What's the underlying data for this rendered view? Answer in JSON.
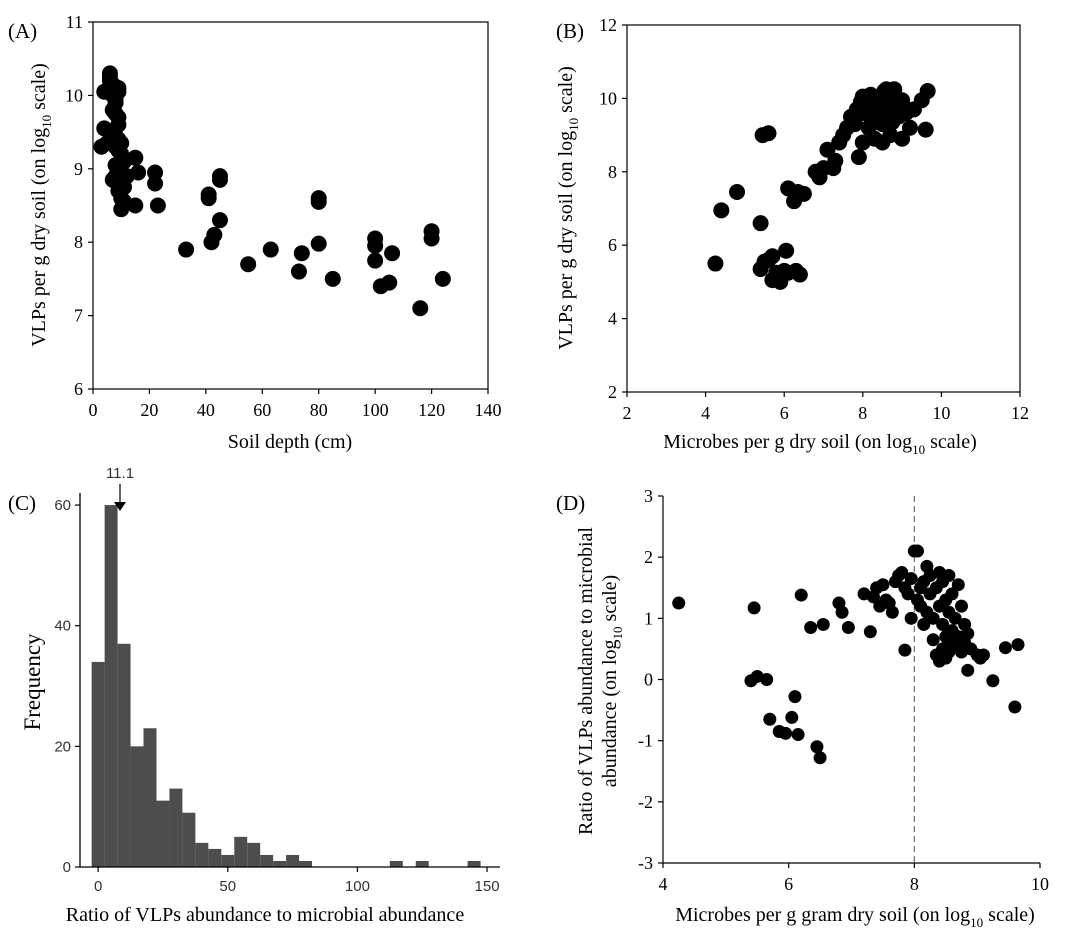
{
  "chart_data": [
    {
      "panel": "(A)",
      "type": "scatter",
      "title": "",
      "xlabel": "Soil depth (cm)",
      "ylabel_parts": [
        "VLPs per g dry soil (on log",
        "10",
        " scale)"
      ],
      "xlim": [
        0,
        140
      ],
      "ylim": [
        6,
        11
      ],
      "xticks": [
        0,
        20,
        40,
        60,
        80,
        100,
        120,
        140
      ],
      "yticks": [
        6,
        7,
        8,
        9,
        10,
        11
      ],
      "grid": false,
      "color": "#000000",
      "points": [
        [
          3,
          9.3
        ],
        [
          4,
          9.55
        ],
        [
          5,
          9.35
        ],
        [
          4,
          10.05
        ],
        [
          6,
          10.3
        ],
        [
          6,
          10.25
        ],
        [
          6,
          10.2
        ],
        [
          7,
          10.15
        ],
        [
          7,
          10.1
        ],
        [
          7,
          10.0
        ],
        [
          8,
          9.95
        ],
        [
          8,
          9.9
        ],
        [
          9,
          10.1
        ],
        [
          9,
          10.05
        ],
        [
          7,
          9.8
        ],
        [
          8,
          9.75
        ],
        [
          9,
          9.7
        ],
        [
          9,
          9.6
        ],
        [
          7,
          9.5
        ],
        [
          8,
          9.45
        ],
        [
          9,
          9.4
        ],
        [
          10,
          9.35
        ],
        [
          8,
          9.3
        ],
        [
          9,
          9.25
        ],
        [
          10,
          9.2
        ],
        [
          10,
          9.1
        ],
        [
          8,
          9.05
        ],
        [
          9,
          9.0
        ],
        [
          10,
          8.95
        ],
        [
          11,
          9.1
        ],
        [
          8,
          8.9
        ],
        [
          9,
          8.85
        ],
        [
          7,
          8.85
        ],
        [
          10,
          8.8
        ],
        [
          11,
          8.75
        ],
        [
          9,
          8.7
        ],
        [
          10,
          8.6
        ],
        [
          11,
          8.55
        ],
        [
          10,
          8.45
        ],
        [
          12,
          8.9
        ],
        [
          15,
          9.15
        ],
        [
          16,
          8.95
        ],
        [
          15,
          8.5
        ],
        [
          22,
          8.95
        ],
        [
          22,
          8.8
        ],
        [
          23,
          8.5
        ],
        [
          33,
          7.9
        ],
        [
          41,
          8.65
        ],
        [
          41,
          8.6
        ],
        [
          42,
          8.0
        ],
        [
          43,
          8.1
        ],
        [
          45,
          8.9
        ],
        [
          45,
          8.85
        ],
        [
          45,
          8.3
        ],
        [
          55,
          7.7
        ],
        [
          63,
          7.9
        ],
        [
          73,
          7.6
        ],
        [
          74,
          7.85
        ],
        [
          80,
          7.98
        ],
        [
          80,
          8.6
        ],
        [
          80,
          8.55
        ],
        [
          85,
          7.5
        ],
        [
          100,
          8.05
        ],
        [
          100,
          7.95
        ],
        [
          100,
          7.75
        ],
        [
          102,
          7.4
        ],
        [
          105,
          7.45
        ],
        [
          106,
          7.85
        ],
        [
          116,
          7.1
        ],
        [
          120,
          8.15
        ],
        [
          120,
          8.05
        ],
        [
          124,
          7.5
        ]
      ]
    },
    {
      "panel": "(B)",
      "type": "scatter",
      "title": "",
      "xlabel_parts": [
        "Microbes per g dry soil (on log",
        "10",
        " scale)"
      ],
      "ylabel_parts": [
        "VLPs per g dry soil (on log",
        "10",
        " scale)"
      ],
      "xlim": [
        2,
        12
      ],
      "ylim": [
        2,
        12
      ],
      "xticks": [
        2,
        4,
        6,
        8,
        10,
        12
      ],
      "yticks": [
        2,
        4,
        6,
        8,
        10,
        12
      ],
      "grid": false,
      "color": "#000000",
      "points": [
        [
          4.25,
          5.5
        ],
        [
          4.4,
          6.95
        ],
        [
          4.8,
          7.45
        ],
        [
          5.4,
          6.6
        ],
        [
          5.45,
          9.0
        ],
        [
          5.6,
          9.05
        ],
        [
          5.4,
          5.35
        ],
        [
          5.5,
          5.55
        ],
        [
          5.6,
          5.6
        ],
        [
          5.7,
          5.7
        ],
        [
          5.7,
          5.05
        ],
        [
          5.8,
          5.25
        ],
        [
          5.9,
          5.0
        ],
        [
          6.0,
          5.3
        ],
        [
          6.05,
          5.85
        ],
        [
          6.1,
          5.25
        ],
        [
          6.3,
          5.3
        ],
        [
          6.4,
          5.2
        ],
        [
          6.1,
          7.55
        ],
        [
          6.25,
          7.2
        ],
        [
          6.35,
          7.45
        ],
        [
          6.5,
          7.4
        ],
        [
          6.8,
          8.0
        ],
        [
          6.9,
          7.85
        ],
        [
          7.0,
          8.1
        ],
        [
          7.1,
          8.6
        ],
        [
          7.25,
          8.1
        ],
        [
          7.3,
          8.3
        ],
        [
          7.4,
          8.8
        ],
        [
          7.5,
          9.0
        ],
        [
          7.6,
          9.2
        ],
        [
          7.7,
          9.5
        ],
        [
          7.8,
          9.3
        ],
        [
          7.85,
          9.7
        ],
        [
          7.9,
          8.4
        ],
        [
          8.0,
          8.8
        ],
        [
          7.95,
          9.9
        ],
        [
          8.0,
          10.05
        ],
        [
          8.05,
          9.6
        ],
        [
          8.1,
          9.85
        ],
        [
          8.15,
          9.2
        ],
        [
          8.2,
          10.1
        ],
        [
          8.25,
          9.4
        ],
        [
          8.3,
          9.75
        ],
        [
          8.3,
          8.9
        ],
        [
          8.4,
          9.55
        ],
        [
          8.4,
          9.9
        ],
        [
          8.5,
          9.3
        ],
        [
          8.5,
          8.8
        ],
        [
          8.55,
          10.2
        ],
        [
          8.6,
          10.25
        ],
        [
          8.65,
          9.65
        ],
        [
          8.7,
          10.0
        ],
        [
          8.7,
          9.0
        ],
        [
          8.75,
          9.35
        ],
        [
          8.8,
          10.25
        ],
        [
          8.85,
          9.8
        ],
        [
          8.9,
          9.5
        ],
        [
          9.0,
          9.95
        ],
        [
          9.0,
          8.9
        ],
        [
          9.1,
          9.6
        ],
        [
          9.2,
          9.2
        ],
        [
          9.3,
          9.7
        ],
        [
          9.5,
          9.95
        ],
        [
          9.6,
          9.15
        ],
        [
          9.65,
          10.2
        ]
      ]
    },
    {
      "panel": "(C)",
      "type": "bar",
      "title": "",
      "xlabel": "Ratio of VLPs abundance to microbial abundance",
      "ylabel": "Frequency",
      "xlim": [
        -7,
        155
      ],
      "ylim": [
        0,
        62
      ],
      "xticks": [
        0,
        50,
        100,
        150
      ],
      "yticks": [
        0,
        20,
        40,
        60
      ],
      "bin_width": 5,
      "bar_color": "#4d4d4d",
      "annotation": {
        "text": "11.1",
        "x": 5,
        "y": 60,
        "style": "arrow"
      },
      "bins": [
        {
          "start": -2.5,
          "count": 34
        },
        {
          "start": 2.5,
          "count": 60
        },
        {
          "start": 7.5,
          "count": 37
        },
        {
          "start": 12.5,
          "count": 20
        },
        {
          "start": 17.5,
          "count": 23
        },
        {
          "start": 22.5,
          "count": 11
        },
        {
          "start": 27.5,
          "count": 13
        },
        {
          "start": 32.5,
          "count": 9
        },
        {
          "start": 37.5,
          "count": 4
        },
        {
          "start": 42.5,
          "count": 3
        },
        {
          "start": 47.5,
          "count": 2
        },
        {
          "start": 52.5,
          "count": 5
        },
        {
          "start": 57.5,
          "count": 4
        },
        {
          "start": 62.5,
          "count": 2
        },
        {
          "start": 67.5,
          "count": 1
        },
        {
          "start": 72.5,
          "count": 2
        },
        {
          "start": 77.5,
          "count": 1
        },
        {
          "start": 112.5,
          "count": 1
        },
        {
          "start": 122.5,
          "count": 1
        },
        {
          "start": 142.5,
          "count": 1
        }
      ]
    },
    {
      "panel": "(D)",
      "type": "scatter",
      "title": "",
      "xlabel_parts": [
        "Microbes per g gram dry soil (on log",
        "10",
        " scale)"
      ],
      "ylabel_parts": [
        "Ratio of VLPs abundance to microbial",
        "abundance (on log",
        "10",
        " scale)"
      ],
      "xlim": [
        4,
        10
      ],
      "ylim": [
        -3,
        3
      ],
      "xticks": [
        4,
        6,
        8,
        10
      ],
      "yticks": [
        -3,
        -2,
        -1,
        0,
        1,
        2,
        3
      ],
      "grid": false,
      "color": "#000000",
      "reference_line": {
        "x": 8,
        "style": "dashed"
      },
      "points": [
        [
          4.25,
          1.25
        ],
        [
          5.45,
          1.17
        ],
        [
          5.4,
          -0.02
        ],
        [
          5.5,
          0.05
        ],
        [
          5.65,
          0.0
        ],
        [
          5.7,
          -0.65
        ],
        [
          5.85,
          -0.85
        ],
        [
          5.95,
          -0.88
        ],
        [
          6.05,
          -0.62
        ],
        [
          6.1,
          -0.28
        ],
        [
          6.15,
          -0.9
        ],
        [
          6.45,
          -1.1
        ],
        [
          6.5,
          -1.28
        ],
        [
          6.2,
          1.38
        ],
        [
          6.35,
          0.85
        ],
        [
          6.55,
          0.9
        ],
        [
          6.8,
          1.25
        ],
        [
          6.85,
          1.1
        ],
        [
          6.95,
          0.85
        ],
        [
          7.2,
          1.4
        ],
        [
          7.3,
          0.78
        ],
        [
          7.35,
          1.35
        ],
        [
          7.4,
          1.5
        ],
        [
          7.45,
          1.2
        ],
        [
          7.5,
          1.55
        ],
        [
          7.55,
          1.3
        ],
        [
          7.6,
          1.25
        ],
        [
          7.65,
          1.1
        ],
        [
          7.7,
          1.6
        ],
        [
          7.75,
          1.7
        ],
        [
          7.8,
          1.75
        ],
        [
          7.85,
          1.5
        ],
        [
          7.9,
          1.4
        ],
        [
          7.85,
          0.48
        ],
        [
          7.95,
          1.0
        ],
        [
          7.95,
          1.65
        ],
        [
          8.0,
          2.1
        ],
        [
          8.05,
          2.1
        ],
        [
          8.05,
          1.3
        ],
        [
          8.1,
          1.5
        ],
        [
          8.1,
          1.2
        ],
        [
          8.15,
          1.6
        ],
        [
          8.15,
          0.9
        ],
        [
          8.2,
          1.85
        ],
        [
          8.2,
          1.1
        ],
        [
          8.25,
          1.7
        ],
        [
          8.25,
          1.4
        ],
        [
          8.3,
          1.0
        ],
        [
          8.3,
          0.65
        ],
        [
          8.35,
          1.5
        ],
        [
          8.35,
          0.4
        ],
        [
          8.4,
          1.75
        ],
        [
          8.4,
          1.2
        ],
        [
          8.4,
          0.3
        ],
        [
          8.45,
          1.6
        ],
        [
          8.45,
          0.9
        ],
        [
          8.45,
          0.5
        ],
        [
          8.5,
          1.3
        ],
        [
          8.5,
          0.7
        ],
        [
          8.5,
          0.35
        ],
        [
          8.55,
          1.7
        ],
        [
          8.55,
          1.1
        ],
        [
          8.55,
          0.45
        ],
        [
          8.6,
          1.4
        ],
        [
          8.6,
          0.8
        ],
        [
          8.6,
          0.55
        ],
        [
          8.65,
          1.0
        ],
        [
          8.65,
          0.6
        ],
        [
          8.7,
          1.55
        ],
        [
          8.7,
          0.7
        ],
        [
          8.75,
          1.2
        ],
        [
          8.75,
          0.45
        ],
        [
          8.8,
          0.9
        ],
        [
          8.8,
          0.6
        ],
        [
          8.85,
          0.75
        ],
        [
          8.85,
          0.15
        ],
        [
          8.9,
          0.5
        ],
        [
          9.0,
          0.4
        ],
        [
          9.05,
          0.35
        ],
        [
          9.1,
          0.4
        ],
        [
          9.25,
          -0.02
        ],
        [
          9.45,
          0.52
        ],
        [
          9.6,
          -0.45
        ],
        [
          9.65,
          0.57
        ]
      ]
    }
  ]
}
